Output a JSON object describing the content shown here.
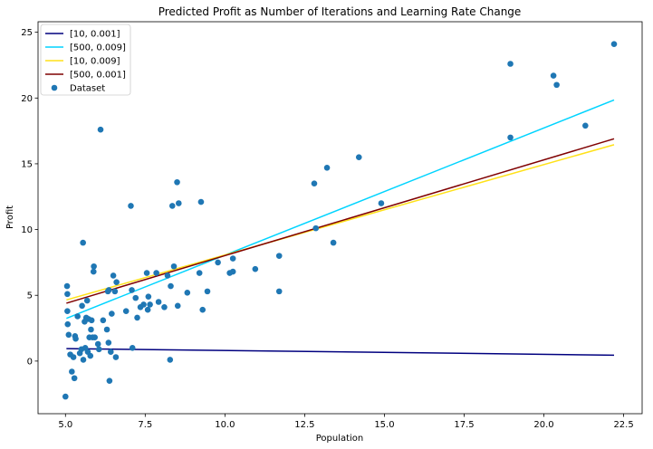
{
  "chart_data": {
    "type": "scatter",
    "title": "Predicted Profit as Number of Iterations and Learning Rate Change",
    "xlabel": "Population",
    "ylabel": "Profit",
    "xlim": [
      4.14,
      23.08
    ],
    "ylim": [
      -4.0,
      25.8
    ],
    "xticks": [
      5.0,
      7.5,
      10.0,
      12.5,
      15.0,
      17.5,
      20.0,
      22.5
    ],
    "xtick_labels": [
      "5.0",
      "7.5",
      "10.0",
      "12.5",
      "15.0",
      "17.5",
      "20.0",
      "22.5"
    ],
    "yticks": [
      0,
      5,
      10,
      15,
      20,
      25
    ],
    "ytick_labels": [
      "0",
      "5",
      "10",
      "15",
      "20",
      "25"
    ],
    "grid": false,
    "legend_position": "top-left",
    "lines": [
      {
        "name": "[10, 0.001]",
        "color": "#00007f",
        "x": [
          5.03,
          22.2
        ],
        "y": [
          0.95,
          0.45
        ]
      },
      {
        "name": "[500, 0.009]",
        "color": "#00d4ff",
        "x": [
          5.03,
          22.2
        ],
        "y": [
          3.25,
          19.85
        ]
      },
      {
        "name": "[10, 0.009]",
        "color": "#ffe119",
        "x": [
          5.03,
          22.2
        ],
        "y": [
          4.65,
          16.45
        ]
      },
      {
        "name": "[500, 0.001]",
        "color": "#7f0000",
        "x": [
          5.03,
          22.2
        ],
        "y": [
          4.4,
          16.9
        ]
      }
    ],
    "scatter": {
      "name": "Dataset",
      "color": "#1f77b4",
      "points": [
        [
          5.0,
          -2.7
        ],
        [
          5.05,
          5.7
        ],
        [
          5.06,
          5.1
        ],
        [
          5.06,
          3.8
        ],
        [
          5.07,
          2.8
        ],
        [
          5.1,
          2.0
        ],
        [
          5.15,
          0.5
        ],
        [
          5.2,
          -0.8
        ],
        [
          5.25,
          0.3
        ],
        [
          5.28,
          -1.3
        ],
        [
          5.3,
          1.9
        ],
        [
          5.32,
          1.7
        ],
        [
          5.38,
          3.4
        ],
        [
          5.45,
          0.6
        ],
        [
          5.5,
          0.9
        ],
        [
          5.52,
          4.2
        ],
        [
          5.55,
          9.0
        ],
        [
          5.56,
          0.1
        ],
        [
          5.6,
          3.0
        ],
        [
          5.62,
          1.0
        ],
        [
          5.65,
          3.3
        ],
        [
          5.68,
          4.6
        ],
        [
          5.7,
          0.7
        ],
        [
          5.72,
          3.2
        ],
        [
          5.75,
          1.8
        ],
        [
          5.78,
          0.4
        ],
        [
          5.8,
          2.4
        ],
        [
          5.82,
          3.1
        ],
        [
          5.85,
          1.8
        ],
        [
          5.88,
          6.8
        ],
        [
          5.89,
          7.2
        ],
        [
          5.92,
          1.8
        ],
        [
          6.02,
          1.3
        ],
        [
          6.05,
          0.9
        ],
        [
          6.1,
          17.6
        ],
        [
          6.18,
          3.1
        ],
        [
          6.3,
          2.4
        ],
        [
          6.33,
          5.3
        ],
        [
          6.35,
          1.4
        ],
        [
          6.36,
          5.4
        ],
        [
          6.38,
          -1.5
        ],
        [
          6.42,
          0.7
        ],
        [
          6.45,
          3.6
        ],
        [
          6.5,
          6.5
        ],
        [
          6.55,
          5.3
        ],
        [
          6.6,
          6.0
        ],
        [
          6.58,
          0.3
        ],
        [
          6.9,
          3.8
        ],
        [
          7.05,
          11.8
        ],
        [
          7.08,
          5.4
        ],
        [
          7.1,
          1.0
        ],
        [
          7.2,
          4.8
        ],
        [
          7.25,
          3.3
        ],
        [
          7.35,
          4.1
        ],
        [
          7.45,
          4.3
        ],
        [
          7.55,
          6.7
        ],
        [
          7.58,
          3.9
        ],
        [
          7.6,
          4.9
        ],
        [
          7.65,
          4.3
        ],
        [
          7.85,
          6.7
        ],
        [
          7.92,
          4.5
        ],
        [
          8.1,
          4.1
        ],
        [
          8.2,
          6.5
        ],
        [
          8.28,
          0.1
        ],
        [
          8.3,
          5.7
        ],
        [
          8.35,
          11.8
        ],
        [
          8.4,
          7.2
        ],
        [
          8.5,
          13.6
        ],
        [
          8.52,
          4.2
        ],
        [
          8.55,
          12.0
        ],
        [
          8.82,
          5.2
        ],
        [
          9.2,
          6.7
        ],
        [
          9.25,
          12.1
        ],
        [
          9.3,
          3.9
        ],
        [
          9.45,
          5.3
        ],
        [
          9.78,
          7.5
        ],
        [
          10.15,
          6.7
        ],
        [
          10.25,
          6.8
        ],
        [
          10.25,
          7.8
        ],
        [
          10.95,
          7.0
        ],
        [
          11.7,
          8.0
        ],
        [
          11.7,
          5.3
        ],
        [
          12.8,
          13.5
        ],
        [
          12.85,
          10.1
        ],
        [
          13.2,
          14.7
        ],
        [
          13.4,
          9.0
        ],
        [
          14.2,
          15.5
        ],
        [
          14.9,
          12.0
        ],
        [
          18.95,
          22.6
        ],
        [
          18.95,
          17.0
        ],
        [
          20.3,
          21.7
        ],
        [
          20.4,
          21.0
        ],
        [
          21.3,
          17.9
        ],
        [
          22.2,
          24.1
        ]
      ]
    }
  }
}
